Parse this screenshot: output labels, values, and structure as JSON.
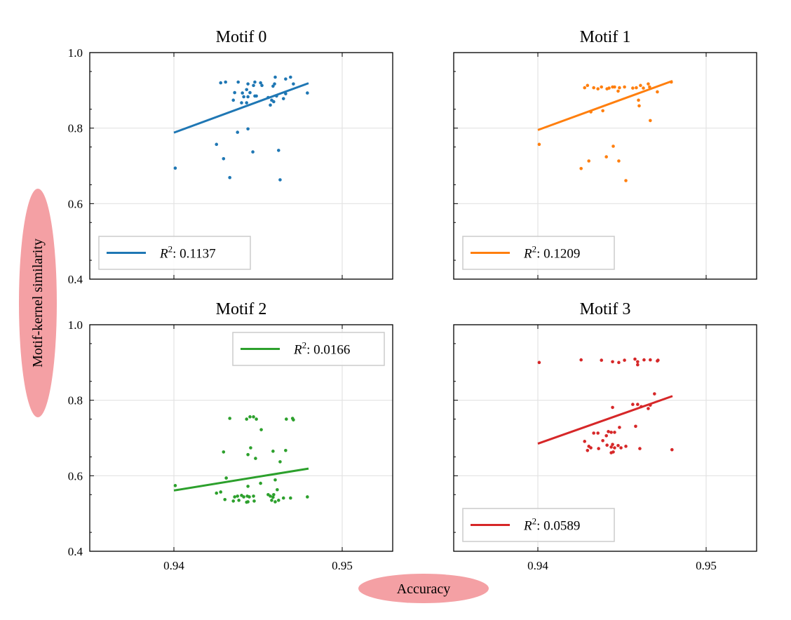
{
  "figure": {
    "ylabel": "Motif-kernel similarity",
    "xlabel": "Accuracy",
    "highlight_color": "#f4a0a4"
  },
  "chart_data": [
    {
      "type": "scatter",
      "title": "Motif 0",
      "color": "#1f77b4",
      "legend": {
        "label_prefix": "R",
        "label_sup": "2",
        "label_value": ": 0.1137",
        "placement": "lower-left"
      },
      "xlim": [
        0.935,
        0.953
      ],
      "ylim": [
        0.4,
        1.0
      ],
      "xticks": [
        0.94,
        0.95
      ],
      "xtick_labels": [
        "0.94",
        "0.95"
      ],
      "yticks": [
        0.4,
        0.6,
        0.8,
        1.0
      ],
      "ytick_labels": [
        "0.4",
        "0.6",
        "0.8",
        "1.0"
      ],
      "show_xtick_labels": false,
      "show_ytick_labels": true,
      "grid": true,
      "fit": {
        "x": [
          0.94,
          0.948
        ],
        "y": [
          0.788,
          0.919
        ]
      },
      "points": [
        [
          0.94278,
          0.92
        ],
        [
          0.94307,
          0.922
        ],
        [
          0.94382,
          0.922
        ],
        [
          0.9444,
          0.917
        ],
        [
          0.94481,
          0.922
        ],
        [
          0.94515,
          0.92
        ],
        [
          0.94523,
          0.913
        ],
        [
          0.94473,
          0.913
        ],
        [
          0.94602,
          0.935
        ],
        [
          0.94693,
          0.935
        ],
        [
          0.94664,
          0.93
        ],
        [
          0.9471,
          0.917
        ],
        [
          0.94598,
          0.917
        ],
        [
          0.94589,
          0.911
        ],
        [
          0.94361,
          0.894
        ],
        [
          0.94407,
          0.893
        ],
        [
          0.94432,
          0.902
        ],
        [
          0.94452,
          0.894
        ],
        [
          0.94415,
          0.883
        ],
        [
          0.9444,
          0.883
        ],
        [
          0.94481,
          0.885
        ],
        [
          0.9449,
          0.885
        ],
        [
          0.94353,
          0.874
        ],
        [
          0.94402,
          0.867
        ],
        [
          0.94432,
          0.867
        ],
        [
          0.9456,
          0.881
        ],
        [
          0.94581,
          0.874
        ],
        [
          0.94593,
          0.87
        ],
        [
          0.94573,
          0.861
        ],
        [
          0.9461,
          0.885
        ],
        [
          0.94664,
          0.891
        ],
        [
          0.94651,
          0.878
        ],
        [
          0.94793,
          0.893
        ],
        [
          0.94378,
          0.789
        ],
        [
          0.9444,
          0.798
        ],
        [
          0.94253,
          0.757
        ],
        [
          0.94295,
          0.719
        ],
        [
          0.94469,
          0.737
        ],
        [
          0.94622,
          0.741
        ],
        [
          0.94008,
          0.694
        ],
        [
          0.94332,
          0.669
        ],
        [
          0.94631,
          0.663
        ]
      ]
    },
    {
      "type": "scatter",
      "title": "Motif 1",
      "color": "#ff7f0e",
      "legend": {
        "label_prefix": "R",
        "label_sup": "2",
        "label_value": ": 0.1209",
        "placement": "lower-left"
      },
      "xlim": [
        0.935,
        0.953
      ],
      "ylim": [
        0.4,
        1.0
      ],
      "xticks": [
        0.94,
        0.95
      ],
      "xtick_labels": [
        "0.94",
        "0.95"
      ],
      "yticks": [
        0.4,
        0.6,
        0.8,
        1.0
      ],
      "ytick_labels": [
        "0.4",
        "0.6",
        "0.8",
        "1.0"
      ],
      "show_xtick_labels": false,
      "show_ytick_labels": false,
      "grid": true,
      "fit": {
        "x": [
          0.94,
          0.948
        ],
        "y": [
          0.795,
          0.925
        ]
      },
      "points": [
        [
          0.94278,
          0.907
        ],
        [
          0.94295,
          0.913
        ],
        [
          0.94332,
          0.907
        ],
        [
          0.94357,
          0.904
        ],
        [
          0.94378,
          0.909
        ],
        [
          0.94411,
          0.904
        ],
        [
          0.94423,
          0.906
        ],
        [
          0.94444,
          0.909
        ],
        [
          0.94456,
          0.909
        ],
        [
          0.94477,
          0.898
        ],
        [
          0.94485,
          0.907
        ],
        [
          0.94515,
          0.909
        ],
        [
          0.94564,
          0.906
        ],
        [
          0.94585,
          0.907
        ],
        [
          0.9461,
          0.913
        ],
        [
          0.94627,
          0.906
        ],
        [
          0.94656,
          0.917
        ],
        [
          0.94664,
          0.909
        ],
        [
          0.9471,
          0.896
        ],
        [
          0.94793,
          0.922
        ],
        [
          0.94598,
          0.874
        ],
        [
          0.94602,
          0.859
        ],
        [
          0.94668,
          0.82
        ],
        [
          0.94386,
          0.846
        ],
        [
          0.94315,
          0.843
        ],
        [
          0.94008,
          0.757
        ],
        [
          0.94448,
          0.752
        ],
        [
          0.94407,
          0.724
        ],
        [
          0.94303,
          0.713
        ],
        [
          0.94481,
          0.713
        ],
        [
          0.94257,
          0.693
        ],
        [
          0.94523,
          0.661
        ]
      ]
    },
    {
      "type": "scatter",
      "title": "Motif 2",
      "color": "#2ca02c",
      "legend": {
        "label_prefix": "R",
        "label_sup": "2",
        "label_value": ": 0.0166",
        "placement": "upper-right"
      },
      "xlim": [
        0.935,
        0.953
      ],
      "ylim": [
        0.4,
        1.0
      ],
      "xticks": [
        0.94,
        0.95
      ],
      "xtick_labels": [
        "0.94",
        "0.95"
      ],
      "yticks": [
        0.4,
        0.6,
        0.8,
        1.0
      ],
      "ytick_labels": [
        "0.4",
        "0.6",
        "0.8",
        "1.0"
      ],
      "show_xtick_labels": true,
      "show_ytick_labels": true,
      "grid": true,
      "fit": {
        "x": [
          0.94,
          0.948
        ],
        "y": [
          0.561,
          0.619
        ]
      },
      "points": [
        [
          0.94332,
          0.752
        ],
        [
          0.94432,
          0.75
        ],
        [
          0.94452,
          0.756
        ],
        [
          0.94473,
          0.756
        ],
        [
          0.9449,
          0.75
        ],
        [
          0.94668,
          0.75
        ],
        [
          0.94705,
          0.752
        ],
        [
          0.9471,
          0.748
        ],
        [
          0.94519,
          0.722
        ],
        [
          0.94295,
          0.663
        ],
        [
          0.94456,
          0.674
        ],
        [
          0.9444,
          0.656
        ],
        [
          0.94485,
          0.646
        ],
        [
          0.94589,
          0.665
        ],
        [
          0.94664,
          0.667
        ],
        [
          0.94631,
          0.637
        ],
        [
          0.94311,
          0.594
        ],
        [
          0.94008,
          0.574
        ],
        [
          0.94515,
          0.58
        ],
        [
          0.94602,
          0.589
        ],
        [
          0.9444,
          0.572
        ],
        [
          0.94614,
          0.563
        ],
        [
          0.94253,
          0.554
        ],
        [
          0.94278,
          0.557
        ],
        [
          0.94303,
          0.537
        ],
        [
          0.94353,
          0.533
        ],
        [
          0.94361,
          0.544
        ],
        [
          0.94378,
          0.546
        ],
        [
          0.94402,
          0.548
        ],
        [
          0.94415,
          0.544
        ],
        [
          0.94386,
          0.535
        ],
        [
          0.94436,
          0.546
        ],
        [
          0.94448,
          0.544
        ],
        [
          0.94473,
          0.546
        ],
        [
          0.94432,
          0.53
        ],
        [
          0.9444,
          0.531
        ],
        [
          0.94477,
          0.533
        ],
        [
          0.9456,
          0.55
        ],
        [
          0.94573,
          0.546
        ],
        [
          0.94593,
          0.55
        ],
        [
          0.94589,
          0.543
        ],
        [
          0.94581,
          0.535
        ],
        [
          0.94602,
          0.531
        ],
        [
          0.94622,
          0.535
        ],
        [
          0.94651,
          0.541
        ],
        [
          0.94693,
          0.541
        ],
        [
          0.94793,
          0.544
        ]
      ]
    },
    {
      "type": "scatter",
      "title": "Motif 3",
      "color": "#d62728",
      "legend": {
        "label_prefix": "R",
        "label_sup": "2",
        "label_value": ": 0.0589",
        "placement": "lower-left"
      },
      "xlim": [
        0.935,
        0.953
      ],
      "ylim": [
        0.4,
        1.0
      ],
      "xticks": [
        0.94,
        0.95
      ],
      "xtick_labels": [
        "0.94",
        "0.95"
      ],
      "yticks": [
        0.4,
        0.6,
        0.8,
        1.0
      ],
      "ytick_labels": [
        "0.4",
        "0.6",
        "0.8",
        "1.0"
      ],
      "show_xtick_labels": true,
      "show_ytick_labels": false,
      "grid": true,
      "fit": {
        "x": [
          0.94,
          0.948
        ],
        "y": [
          0.685,
          0.811
        ]
      },
      "points": [
        [
          0.94008,
          0.9
        ],
        [
          0.94257,
          0.907
        ],
        [
          0.94378,
          0.906
        ],
        [
          0.94444,
          0.902
        ],
        [
          0.94481,
          0.9
        ],
        [
          0.94515,
          0.906
        ],
        [
          0.94577,
          0.909
        ],
        [
          0.94593,
          0.902
        ],
        [
          0.94593,
          0.894
        ],
        [
          0.94631,
          0.907
        ],
        [
          0.94668,
          0.907
        ],
        [
          0.94714,
          0.906
        ],
        [
          0.9471,
          0.904
        ],
        [
          0.94693,
          0.817
        ],
        [
          0.94444,
          0.781
        ],
        [
          0.94564,
          0.789
        ],
        [
          0.94593,
          0.789
        ],
        [
          0.94614,
          0.783
        ],
        [
          0.94668,
          0.787
        ],
        [
          0.94656,
          0.778
        ],
        [
          0.94485,
          0.728
        ],
        [
          0.94581,
          0.731
        ],
        [
          0.94332,
          0.713
        ],
        [
          0.94357,
          0.713
        ],
        [
          0.94419,
          0.717
        ],
        [
          0.94436,
          0.715
        ],
        [
          0.94456,
          0.715
        ],
        [
          0.94407,
          0.706
        ],
        [
          0.94278,
          0.691
        ],
        [
          0.94386,
          0.693
        ],
        [
          0.94303,
          0.678
        ],
        [
          0.94315,
          0.674
        ],
        [
          0.94361,
          0.672
        ],
        [
          0.94411,
          0.681
        ],
        [
          0.94436,
          0.676
        ],
        [
          0.94444,
          0.683
        ],
        [
          0.94456,
          0.674
        ],
        [
          0.94477,
          0.68
        ],
        [
          0.94494,
          0.674
        ],
        [
          0.94523,
          0.678
        ],
        [
          0.94606,
          0.672
        ],
        [
          0.94295,
          0.667
        ],
        [
          0.94436,
          0.661
        ],
        [
          0.94448,
          0.663
        ],
        [
          0.94797,
          0.669
        ]
      ]
    }
  ]
}
